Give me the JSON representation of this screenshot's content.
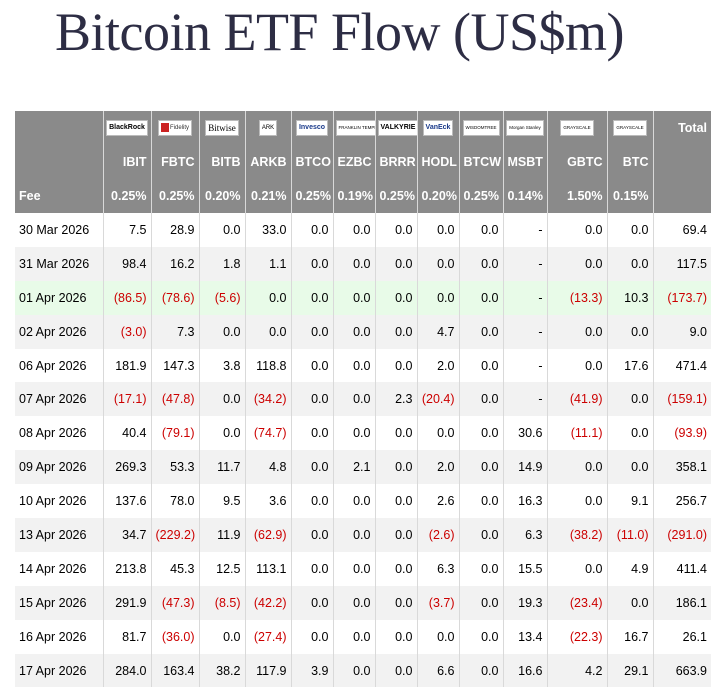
{
  "title": "Bitcoin ETF Flow (US$m)",
  "columns": [
    {
      "logo": "BlackRock",
      "ticker": "IBIT",
      "fee": "0.25%"
    },
    {
      "logo": "Fidelity",
      "ticker": "FBTC",
      "fee": "0.25%"
    },
    {
      "logo": "Bitwise",
      "ticker": "BITB",
      "fee": "0.20%"
    },
    {
      "logo": "ARK",
      "ticker": "ARKB",
      "fee": "0.21%"
    },
    {
      "logo": "Invesco",
      "ticker": "BTCO",
      "fee": "0.25%"
    },
    {
      "logo": "FRANKLIN TEMPLETON",
      "ticker": "EZBC",
      "fee": "0.19%"
    },
    {
      "logo": "VALKYRIE",
      "ticker": "BRRR",
      "fee": "0.25%"
    },
    {
      "logo": "VanEck",
      "ticker": "HODL",
      "fee": "0.20%"
    },
    {
      "logo": "WISDOMTREE",
      "ticker": "BTCW",
      "fee": "0.25%"
    },
    {
      "logo": "Morgan Stanley",
      "ticker": "MSBT",
      "fee": "0.14%"
    },
    {
      "logo": "GRAYSCALE",
      "ticker": "GBTC",
      "fee": "1.50%"
    },
    {
      "logo": "GRAYSCALE",
      "ticker": "BTC",
      "fee": "0.15%"
    }
  ],
  "total_label": "Total",
  "fee_label": "Fee",
  "rows": [
    {
      "date": "30 Mar 2026",
      "values": [
        "7.5",
        "28.9",
        "0.0",
        "33.0",
        "0.0",
        "0.0",
        "0.0",
        "0.0",
        "0.0",
        "-",
        "0.0",
        "0.0"
      ],
      "total": "69.4"
    },
    {
      "date": "31 Mar 2026",
      "values": [
        "98.4",
        "16.2",
        "1.8",
        "1.1",
        "0.0",
        "0.0",
        "0.0",
        "0.0",
        "0.0",
        "-",
        "0.0",
        "0.0"
      ],
      "total": "117.5"
    },
    {
      "date": "01 Apr 2026",
      "values": [
        "(86.5)",
        "(78.6)",
        "(5.6)",
        "0.0",
        "0.0",
        "0.0",
        "0.0",
        "0.0",
        "0.0",
        "-",
        "(13.3)",
        "10.3"
      ],
      "total": "(173.7)",
      "highlight": true
    },
    {
      "date": "02 Apr 2026",
      "values": [
        "(3.0)",
        "7.3",
        "0.0",
        "0.0",
        "0.0",
        "0.0",
        "0.0",
        "4.7",
        "0.0",
        "-",
        "0.0",
        "0.0"
      ],
      "total": "9.0"
    },
    {
      "date": "06 Apr 2026",
      "values": [
        "181.9",
        "147.3",
        "3.8",
        "118.8",
        "0.0",
        "0.0",
        "0.0",
        "2.0",
        "0.0",
        "-",
        "0.0",
        "17.6"
      ],
      "total": "471.4"
    },
    {
      "date": "07 Apr 2026",
      "values": [
        "(17.1)",
        "(47.8)",
        "0.0",
        "(34.2)",
        "0.0",
        "0.0",
        "2.3",
        "(20.4)",
        "0.0",
        "-",
        "(41.9)",
        "0.0"
      ],
      "total": "(159.1)"
    },
    {
      "date": "08 Apr 2026",
      "values": [
        "40.4",
        "(79.1)",
        "0.0",
        "(74.7)",
        "0.0",
        "0.0",
        "0.0",
        "0.0",
        "0.0",
        "30.6",
        "(11.1)",
        "0.0"
      ],
      "total": "(93.9)"
    },
    {
      "date": "09 Apr 2026",
      "values": [
        "269.3",
        "53.3",
        "11.7",
        "4.8",
        "0.0",
        "2.1",
        "0.0",
        "2.0",
        "0.0",
        "14.9",
        "0.0",
        "0.0"
      ],
      "total": "358.1"
    },
    {
      "date": "10 Apr 2026",
      "values": [
        "137.6",
        "78.0",
        "9.5",
        "3.6",
        "0.0",
        "0.0",
        "0.0",
        "2.6",
        "0.0",
        "16.3",
        "0.0",
        "9.1"
      ],
      "total": "256.7"
    },
    {
      "date": "13 Apr 2026",
      "values": [
        "34.7",
        "(229.2)",
        "11.9",
        "(62.9)",
        "0.0",
        "0.0",
        "0.0",
        "(2.6)",
        "0.0",
        "6.3",
        "(38.2)",
        "(11.0)"
      ],
      "total": "(291.0)"
    },
    {
      "date": "14 Apr 2026",
      "values": [
        "213.8",
        "45.3",
        "12.5",
        "113.1",
        "0.0",
        "0.0",
        "0.0",
        "6.3",
        "0.0",
        "15.5",
        "0.0",
        "4.9"
      ],
      "total": "411.4"
    },
    {
      "date": "15 Apr 2026",
      "values": [
        "291.9",
        "(47.3)",
        "(8.5)",
        "(42.2)",
        "0.0",
        "0.0",
        "0.0",
        "(3.7)",
        "0.0",
        "19.3",
        "(23.4)",
        "0.0"
      ],
      "total": "186.1"
    },
    {
      "date": "16 Apr 2026",
      "values": [
        "81.7",
        "(36.0)",
        "0.0",
        "(27.4)",
        "0.0",
        "0.0",
        "0.0",
        "0.0",
        "0.0",
        "13.4",
        "(22.3)",
        "16.7"
      ],
      "total": "26.1"
    },
    {
      "date": "17 Apr 2026",
      "values": [
        "284.0",
        "163.4",
        "38.2",
        "117.9",
        "3.9",
        "0.0",
        "0.0",
        "6.6",
        "0.0",
        "16.6",
        "4.2",
        "29.1"
      ],
      "total": "663.9"
    }
  ]
}
